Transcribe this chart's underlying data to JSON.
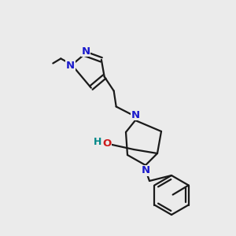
{
  "background_color": "#ebebeb",
  "bond_color": "#1a1a1a",
  "N_color": "#1a1acc",
  "O_color": "#cc1a1a",
  "H_color": "#008888",
  "font_size": 9.5,
  "lw": 1.6,
  "figsize": [
    3.0,
    3.0
  ],
  "dpi": 100,
  "xlim": [
    0,
    300
  ],
  "ylim": [
    0,
    300
  ]
}
